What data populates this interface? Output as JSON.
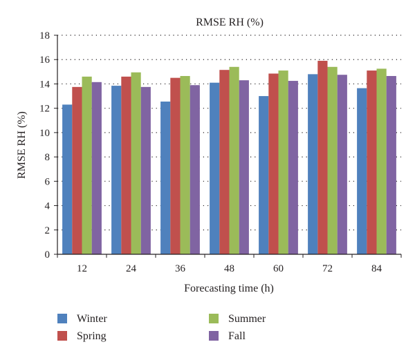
{
  "chart_data": {
    "type": "bar",
    "title": "RMSE RH (%)",
    "xlabel": "Forecasting time (h)",
    "ylabel": "RMSE RH (%)",
    "ylim": [
      0,
      18
    ],
    "yticks": [
      "0",
      "2",
      "4",
      "6",
      "8",
      "10",
      "12",
      "14",
      "16",
      "18"
    ],
    "categories": [
      "12",
      "24",
      "36",
      "48",
      "60",
      "72",
      "84"
    ],
    "grid": "horizontal-dotted",
    "legend_position": "bottom",
    "series": [
      {
        "name": "Winter",
        "color": "#4f81bd",
        "values": [
          12.3,
          13.85,
          12.55,
          14.1,
          13.0,
          14.8,
          13.65
        ]
      },
      {
        "name": "Spring",
        "color": "#c0504d",
        "values": [
          13.75,
          14.6,
          14.5,
          15.15,
          14.85,
          15.9,
          15.1
        ]
      },
      {
        "name": "Summer",
        "color": "#9bbb59",
        "values": [
          14.6,
          14.95,
          14.65,
          15.4,
          15.1,
          15.4,
          15.25
        ]
      },
      {
        "name": "Fall",
        "color": "#8064a2",
        "values": [
          14.15,
          13.75,
          13.9,
          14.3,
          14.25,
          14.75,
          14.65
        ]
      }
    ]
  }
}
